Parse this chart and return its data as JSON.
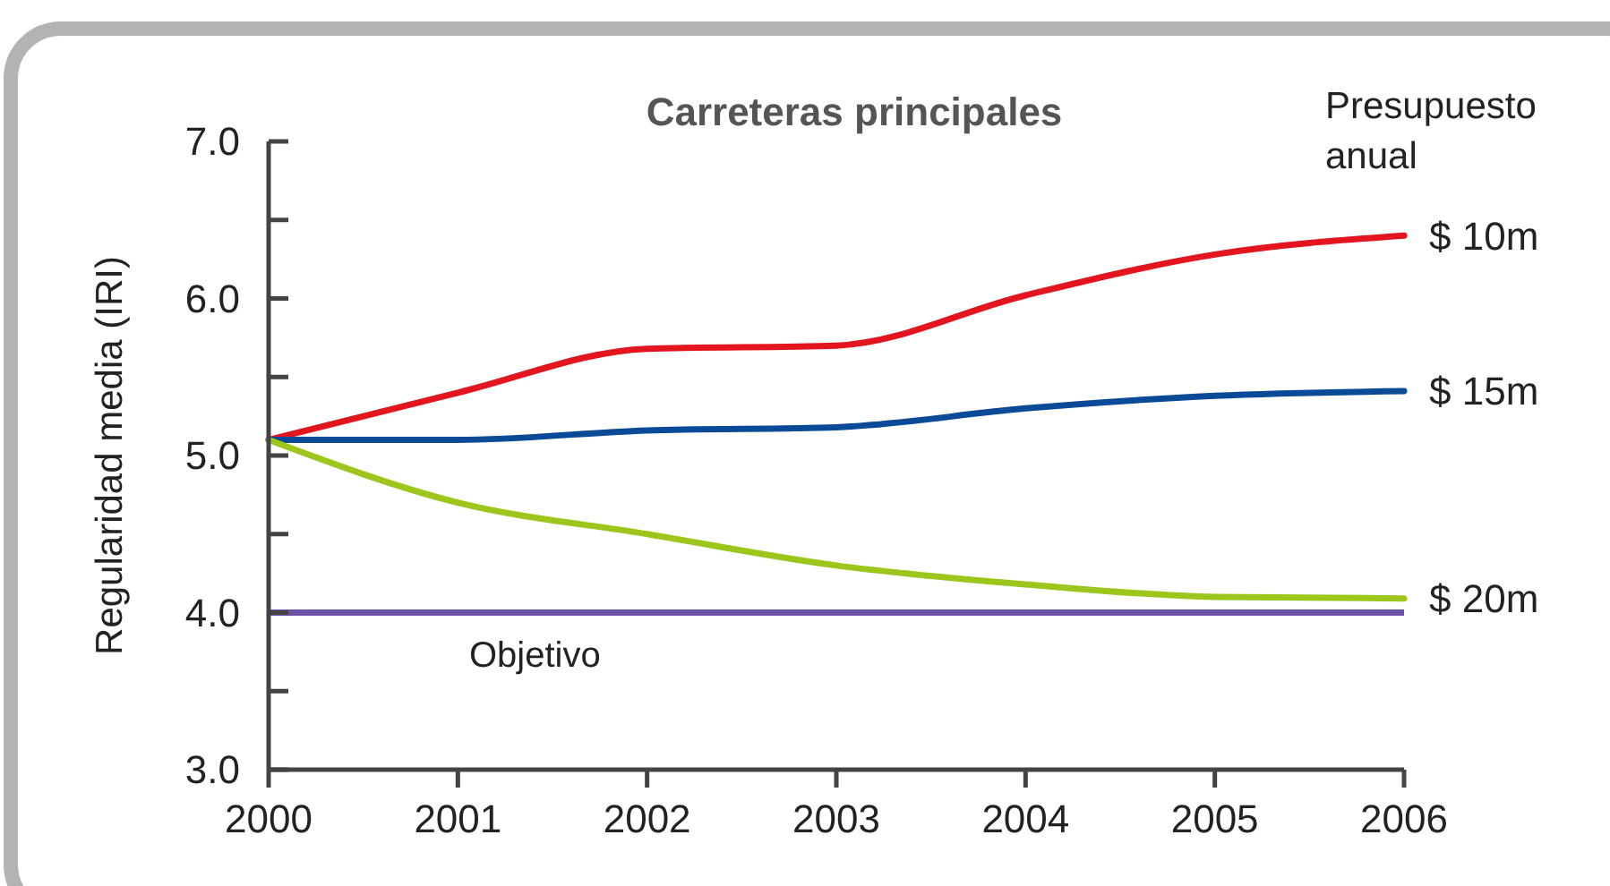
{
  "chart_data": {
    "type": "line",
    "title": "Carreteras principales",
    "ylabel": "Regularidad media (IRI)",
    "legend_title": "Presupuesto anual",
    "x": [
      2000,
      2001,
      2002,
      2003,
      2004,
      2005,
      2006
    ],
    "series": [
      {
        "name": "$ 10m",
        "color": "#e3151f",
        "values": [
          5.1,
          5.4,
          5.68,
          5.7,
          6.02,
          6.28,
          6.4
        ]
      },
      {
        "name": "$ 15m",
        "color": "#0b4a97",
        "values": [
          5.1,
          5.1,
          5.16,
          5.18,
          5.3,
          5.38,
          5.41
        ]
      },
      {
        "name": "$ 20m",
        "color": "#9cc61b",
        "values": [
          5.1,
          4.7,
          4.5,
          4.3,
          4.18,
          4.1,
          4.09
        ]
      }
    ],
    "ref_lines": [
      {
        "axis": "y",
        "value": 4.0,
        "label": "Objetivo",
        "color": "#6a50a7"
      }
    ],
    "xlim": [
      2000,
      2006
    ],
    "xticks": [
      2000,
      2001,
      2002,
      2003,
      2004,
      2005,
      2006
    ],
    "ylim": [
      3,
      7
    ],
    "yticks": [
      {
        "value": 3,
        "label": "3.0"
      },
      {
        "value": 3.5,
        "label": null
      },
      {
        "value": 4,
        "label": "4.0"
      },
      {
        "value": 4.5,
        "label": null
      },
      {
        "value": 5,
        "label": "5.0"
      },
      {
        "value": 5.5,
        "label": null
      },
      {
        "value": 6,
        "label": "6.0"
      },
      {
        "value": 6.5,
        "label": null
      },
      {
        "value": 7,
        "label": "7.0"
      }
    ],
    "grid": false,
    "legend": "right",
    "marker": "none",
    "line_style": "solid"
  }
}
